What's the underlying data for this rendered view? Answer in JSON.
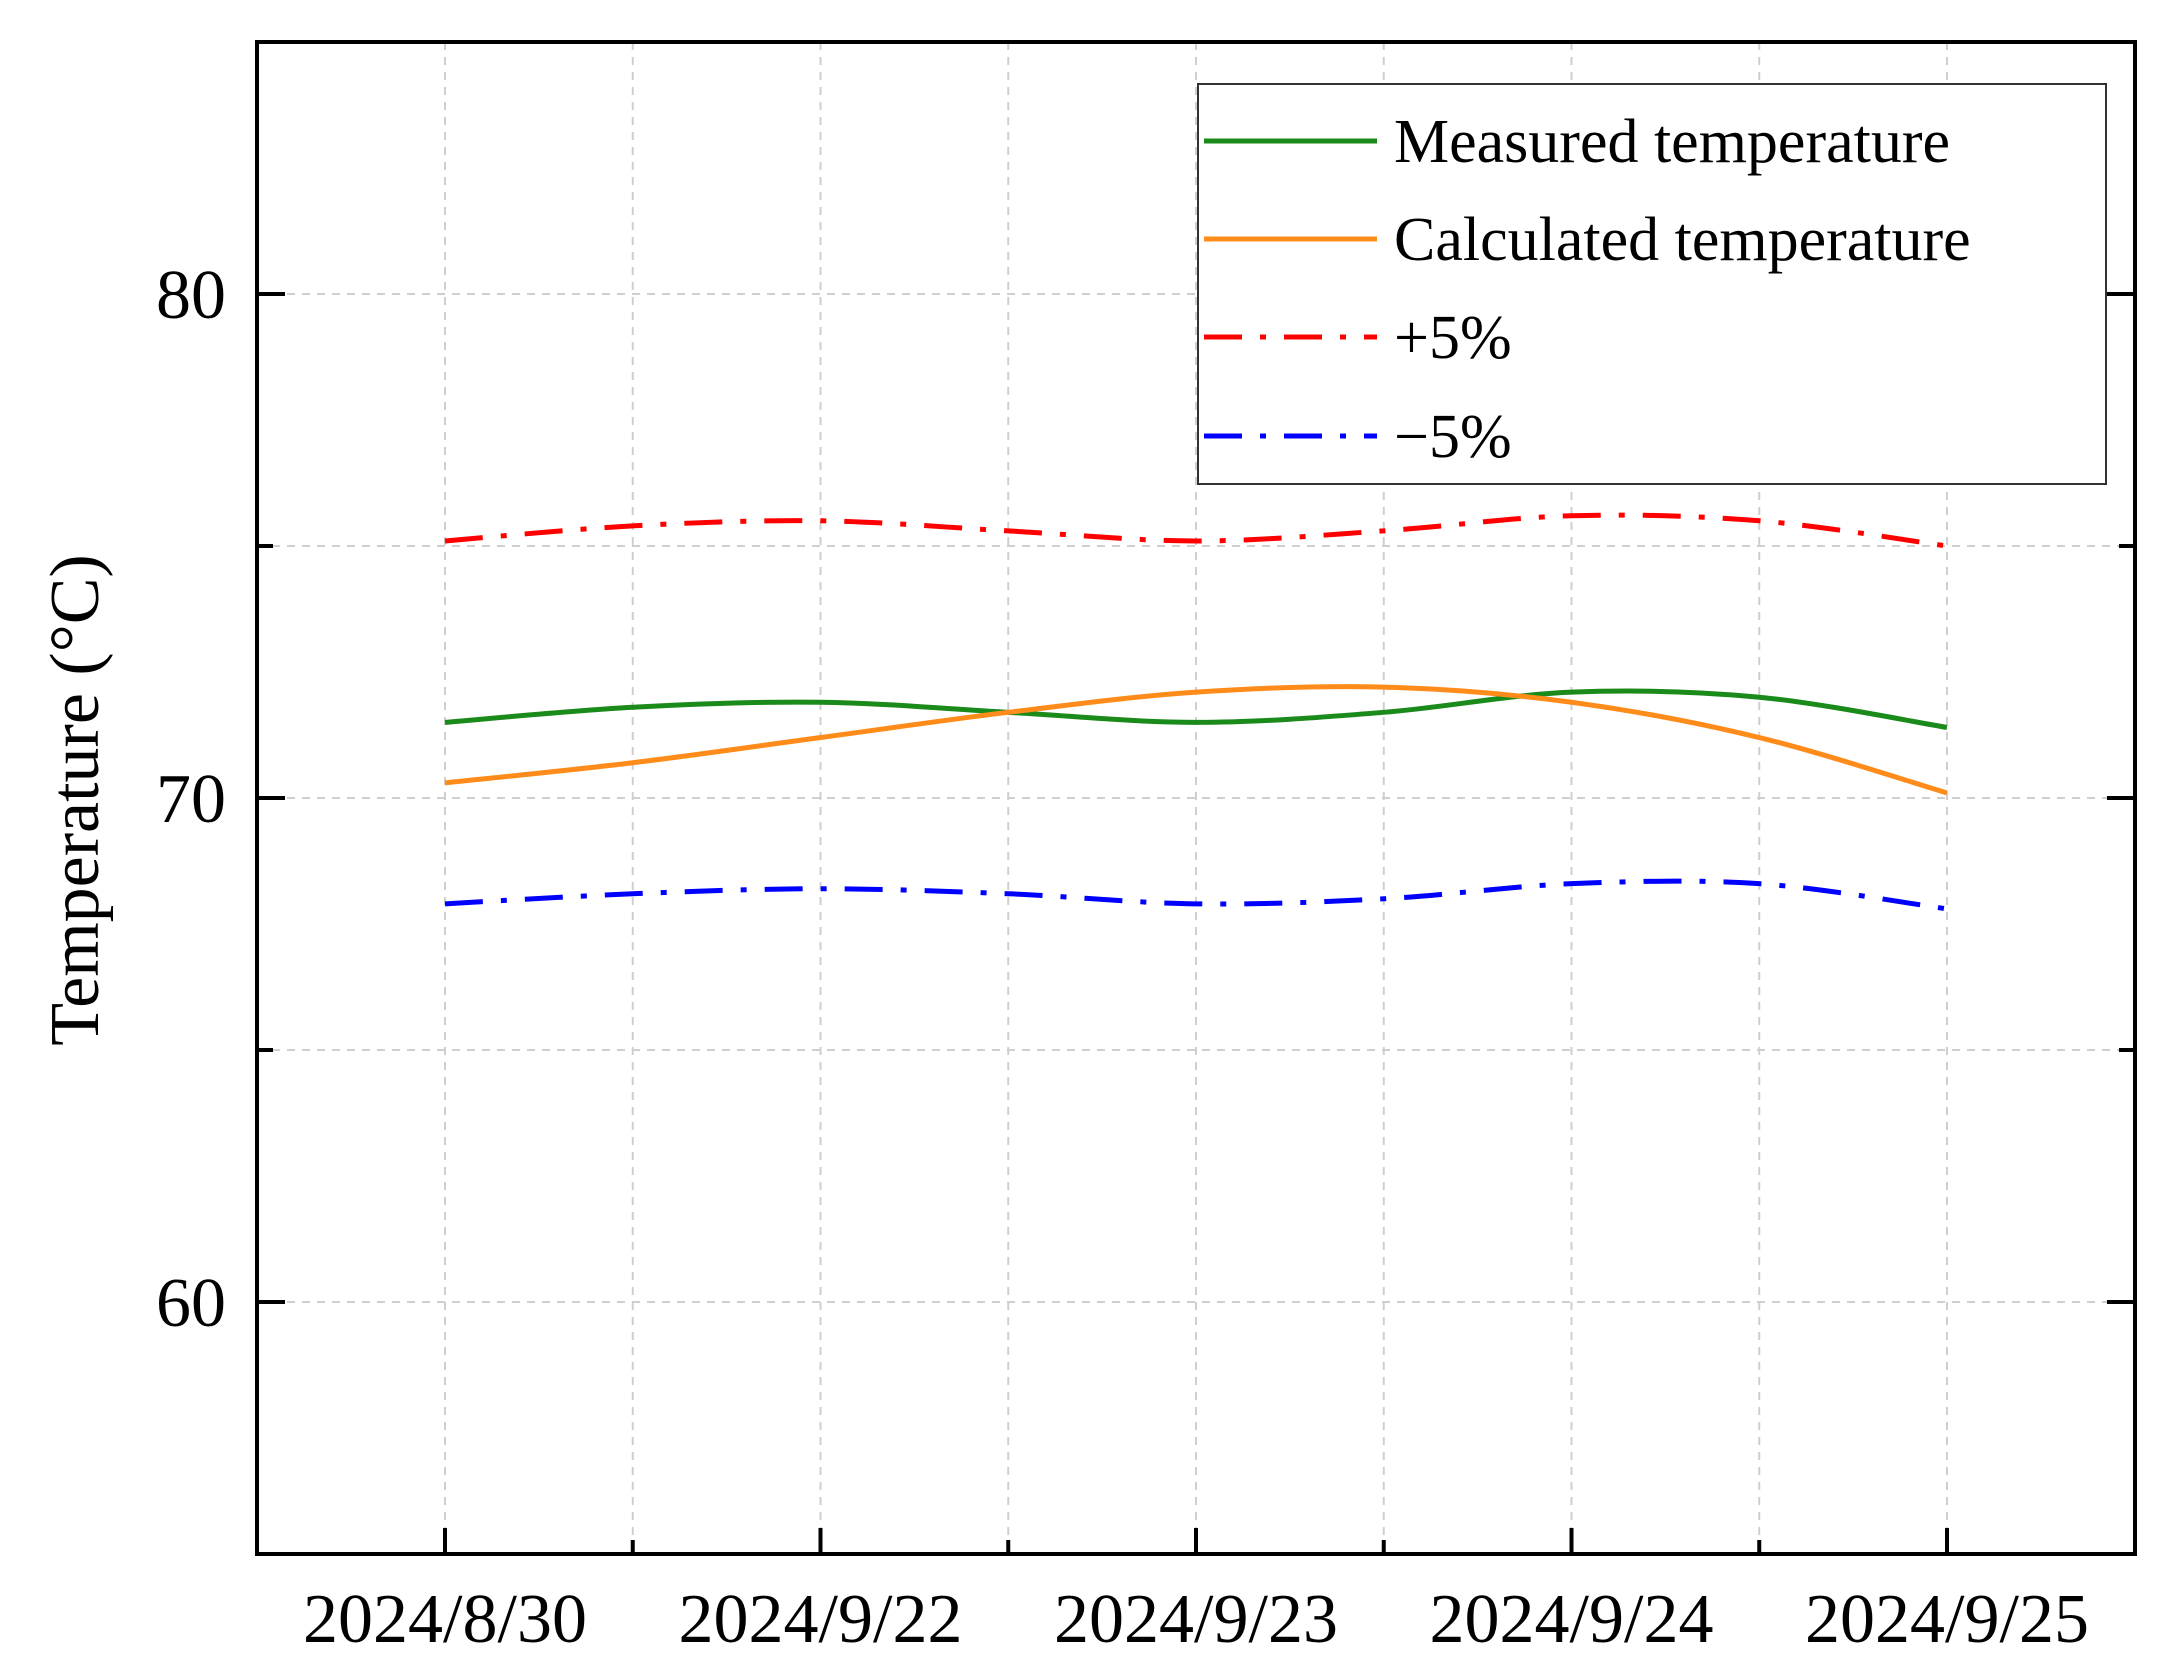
{
  "chart_data": {
    "type": "line",
    "title": "",
    "xlabel": "",
    "ylabel": "Temperature (°C)",
    "ylim": [
      55,
      85
    ],
    "yticks": [
      60,
      70,
      80
    ],
    "ytick_labels": [
      "60",
      "70",
      "80"
    ],
    "categories": [
      "2024/8/30",
      "2024/9/22",
      "2024/9/23",
      "2024/9/24",
      "2024/9/25"
    ],
    "grid": true,
    "legend_position": "top-right",
    "series": [
      {
        "name": "Measured temperature",
        "color": "#1a8a1a",
        "style": "solid",
        "x": [
          0,
          0.5,
          1,
          1.5,
          2,
          2.5,
          3,
          3.5,
          4
        ],
        "values": [
          71.5,
          71.8,
          71.9,
          71.7,
          71.5,
          71.7,
          72.1,
          72.0,
          71.4
        ]
      },
      {
        "name": "Calculated temperature",
        "color": "#ff8c1a",
        "style": "solid",
        "x": [
          0,
          0.5,
          1,
          1.5,
          2,
          2.5,
          3,
          3.5,
          4
        ],
        "values": [
          70.3,
          70.7,
          71.2,
          71.7,
          72.1,
          72.2,
          71.9,
          71.2,
          70.1
        ]
      },
      {
        "name": "+5%",
        "color": "#ff0000",
        "style": "dashdot",
        "x": [
          0,
          0.5,
          1,
          1.5,
          2,
          2.5,
          3,
          3.5,
          4
        ],
        "values": [
          75.1,
          75.4,
          75.5,
          75.3,
          75.1,
          75.3,
          75.6,
          75.5,
          75.0
        ]
      },
      {
        "name": "−5%",
        "color": "#0000ff",
        "style": "dashdot",
        "x": [
          0,
          0.5,
          1,
          1.5,
          2,
          2.5,
          3,
          3.5,
          4
        ],
        "values": [
          67.9,
          68.1,
          68.2,
          68.1,
          67.9,
          68.0,
          68.3,
          68.3,
          67.8
        ]
      }
    ]
  }
}
